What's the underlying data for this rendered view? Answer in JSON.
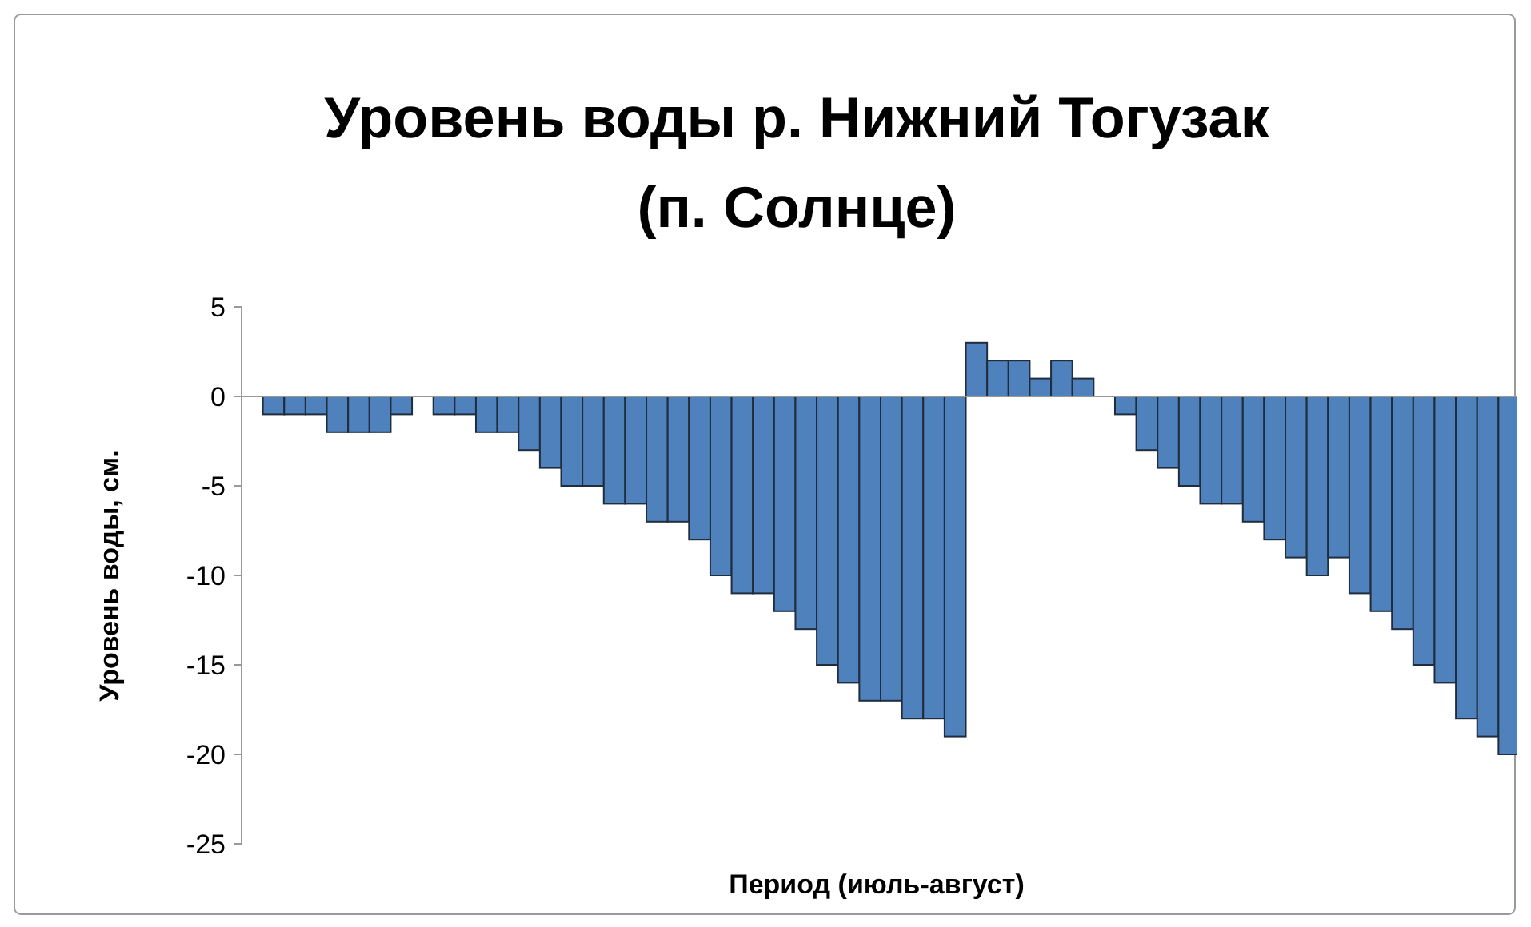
{
  "chart_data": {
    "type": "bar",
    "title": "Уровень воды р. Нижний Тогузак\n(п. Солнце)",
    "xlabel": "Период (июль-август)",
    "ylabel": "Уровень воды, см.",
    "categories": [
      null,
      null,
      null,
      null,
      null,
      null,
      null,
      null,
      null,
      null,
      null,
      null,
      null,
      null,
      null,
      null,
      null,
      null,
      null,
      null,
      null,
      null,
      null,
      null,
      null,
      null,
      null,
      null,
      null,
      null,
      null,
      null,
      null,
      null,
      null,
      null,
      null,
      null,
      null,
      null,
      null,
      null,
      null,
      null,
      null,
      null,
      null,
      null,
      null,
      null,
      null,
      null,
      null,
      null,
      null,
      null,
      null,
      null,
      null,
      null
    ],
    "values": [
      null,
      -1,
      -1,
      -1,
      -2,
      -2,
      -2,
      -1,
      null,
      -1,
      -1,
      -2,
      -2,
      -3,
      -4,
      -5,
      -5,
      -6,
      -6,
      -7,
      -7,
      -8,
      -10,
      -11,
      -11,
      -12,
      -13,
      -15,
      -16,
      -17,
      -17,
      -18,
      -18,
      -19,
      3,
      2,
      2,
      1,
      2,
      1,
      null,
      -1,
      -3,
      -4,
      -5,
      -6,
      -6,
      -7,
      -8,
      -9,
      -10,
      -9,
      -11,
      -12,
      -13,
      -15,
      -16,
      -18,
      -19,
      -20
    ],
    "color": "#4f81bd",
    "ylim": [
      -25,
      5
    ],
    "yticks": [
      -25,
      -20,
      -15,
      -10,
      -5,
      0,
      5
    ]
  }
}
